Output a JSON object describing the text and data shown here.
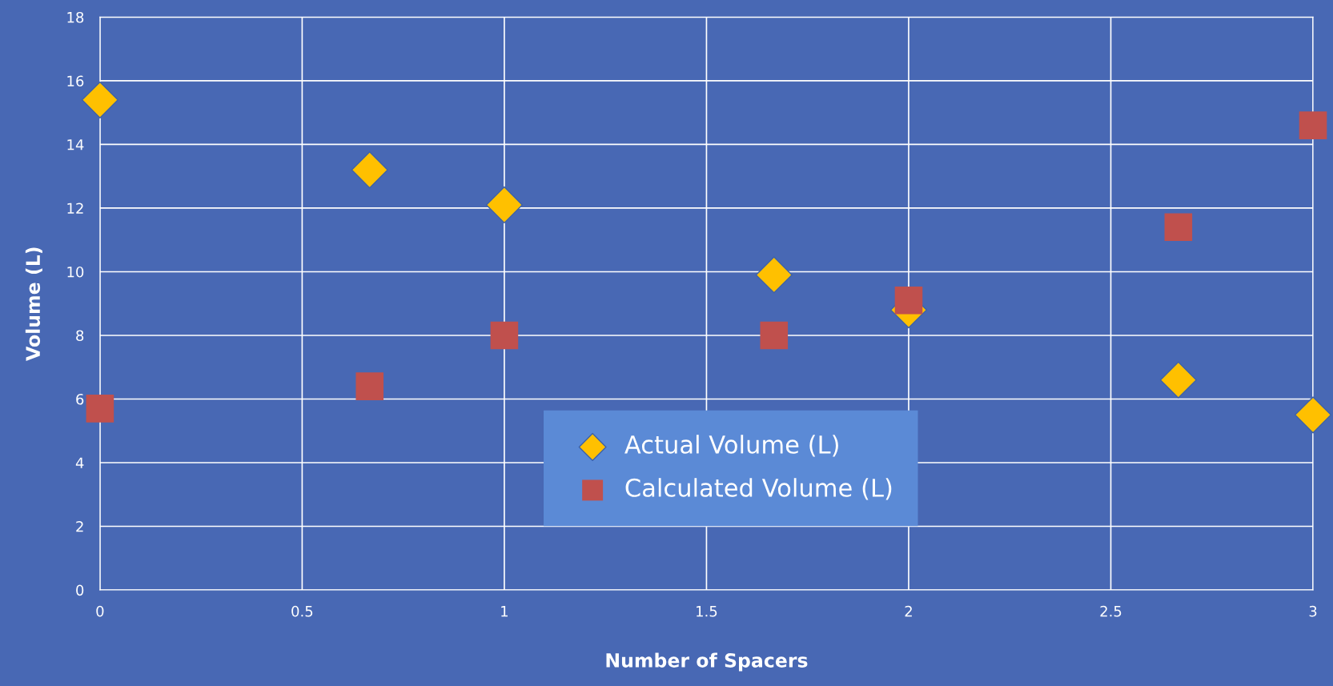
{
  "chart_data": {
    "type": "scatter",
    "xlabel": "Number of Spacers",
    "ylabel": "Volume (L)",
    "series": [
      {
        "name": "Actual Volume (L)",
        "color": "#ffc000",
        "marker": "diamond",
        "x": [
          0,
          0.667,
          1,
          1.667,
          2,
          2.667,
          3
        ],
        "values": [
          15.4,
          13.2,
          12.1,
          9.9,
          8.8,
          6.6,
          5.5
        ]
      },
      {
        "name": "Calculated Volume (L)",
        "color": "#c0504d",
        "marker": "square",
        "x": [
          0,
          0.667,
          1,
          1.667,
          2,
          2.667,
          3
        ],
        "values": [
          5.7,
          6.4,
          8.0,
          8.0,
          9.1,
          11.4,
          14.6
        ]
      }
    ],
    "xlim": [
      0,
      3
    ],
    "xticks": [
      0,
      0.5,
      1,
      1.5,
      2,
      2.5,
      3
    ],
    "ylim": [
      0,
      18
    ],
    "yticks": [
      0,
      2,
      4,
      6,
      8,
      10,
      12,
      14,
      16,
      18
    ],
    "grid": true,
    "legend": "bottom"
  }
}
